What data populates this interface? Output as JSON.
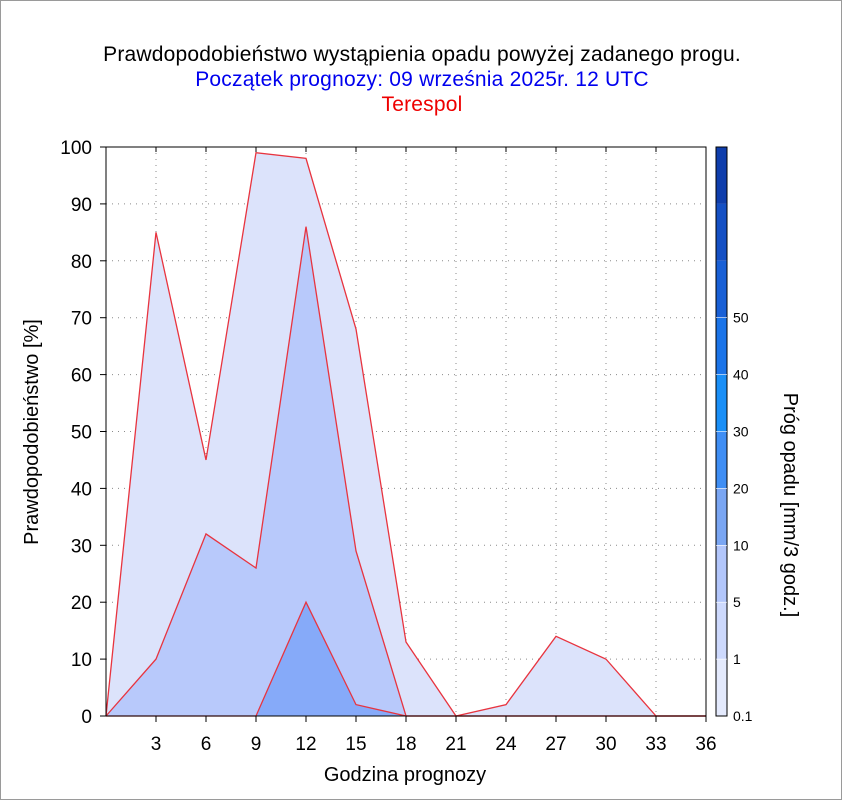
{
  "title": "Prawdopodobieństwo wystąpienia opadu powyżej zadanego progu.",
  "subtitle": "Początek prognozy: 09 września 2025r. 12 UTC",
  "location": "Terespol",
  "chart_data": {
    "type": "area",
    "xlabel": "Godzina prognozy",
    "ylabel": "Prawdopodobieństwo [%]",
    "xlim": [
      0,
      36
    ],
    "ylim": [
      0,
      100
    ],
    "x_ticks": [
      3,
      6,
      9,
      12,
      15,
      18,
      21,
      24,
      27,
      30,
      33,
      36
    ],
    "y_ticks": [
      0,
      10,
      20,
      30,
      40,
      50,
      60,
      70,
      80,
      90,
      100
    ],
    "grid": true,
    "x": [
      0,
      3,
      6,
      9,
      12,
      15,
      18,
      21,
      24,
      27,
      30,
      33,
      36
    ],
    "series": [
      {
        "name": "0.1",
        "color": "#dce3fb",
        "values": [
          0,
          85,
          45,
          99,
          98,
          68,
          13,
          0,
          2,
          14,
          10,
          0,
          0
        ]
      },
      {
        "name": "1",
        "color": "#b8c9fb",
        "values": [
          0,
          10,
          32,
          26,
          86,
          29,
          0,
          0,
          0,
          0,
          0,
          0,
          0
        ]
      },
      {
        "name": "5",
        "color": "#86aaf9",
        "values": [
          0,
          0,
          0,
          0,
          20,
          2,
          0,
          0,
          0,
          0,
          0,
          0,
          0
        ]
      }
    ],
    "outline_color": "#e8343f",
    "colorbar": {
      "label": "Próg opadu [mm/3 godz.]",
      "tick_labels": [
        "0.1",
        "1",
        "5",
        "10",
        "20",
        "30",
        "40",
        "50"
      ],
      "colors": [
        "#e4eafd",
        "#cdd9fd",
        "#b2c6fb",
        "#7aa6f3",
        "#3f8ef4",
        "#1a8ff7",
        "#1b74e8",
        "#1960d6",
        "#1550c4",
        "#0f3eac"
      ]
    }
  }
}
